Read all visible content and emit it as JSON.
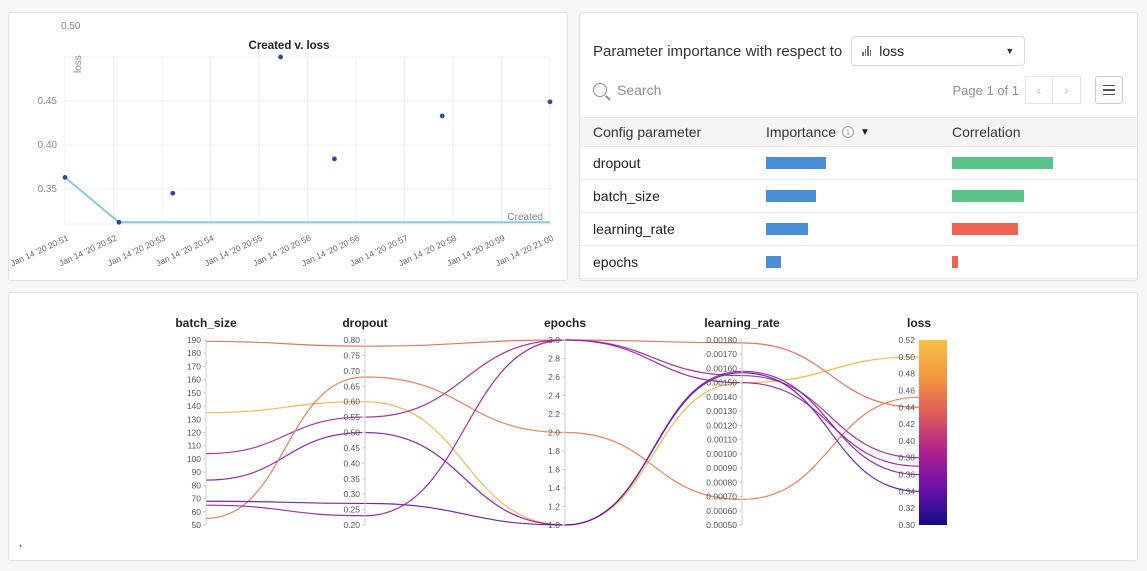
{
  "scatter": {
    "title": "Created v. loss",
    "ylabel": "loss",
    "xlabel": "Created",
    "top_tick": "0.50",
    "yticks": [
      "0.45",
      "0.40",
      "0.35"
    ],
    "xticks": [
      "Jan 14 '20 20:51",
      "Jan 14 '20 20:52",
      "Jan 14 '20 20:53",
      "Jan 14 '20 20:54",
      "Jan 14 '20 20:55",
      "Jan 14 '20 20:56",
      "Jan 14 '20 20:56",
      "Jan 14 '20 20:57",
      "Jan 14 '20 20:58",
      "Jan 14 '20 20:59",
      "Jan 14 '20 21:00"
    ],
    "colors": {
      "point": "#2d4aa8",
      "line": "#8ec6ea",
      "grid": "#eceff2"
    }
  },
  "importance": {
    "header": "Parameter importance with respect to",
    "metric_icon": "bar-chart-icon",
    "metric": "loss",
    "search_placeholder": "Search",
    "page_info": "Page 1 of 1",
    "columns": [
      "Config parameter",
      "Importance",
      "Correlation"
    ],
    "rows": [
      {
        "name": "dropout",
        "importance": 0.6,
        "correlation": 0.84
      },
      {
        "name": "batch_size",
        "importance": 0.5,
        "correlation": 0.6
      },
      {
        "name": "learning_rate",
        "importance": 0.42,
        "correlation": -0.55
      },
      {
        "name": "epochs",
        "importance": 0.15,
        "correlation": -0.05
      }
    ],
    "colors": {
      "importance": "#4a8fd6",
      "positive": "#5cc48a",
      "negative": "#ee6352"
    }
  },
  "parallel": {
    "footnote": ",",
    "colorbar_colors": [
      "#140c88",
      "#6a12a8",
      "#b0228c",
      "#df5a5a",
      "#f3983f",
      "#f5c244"
    ]
  },
  "chart_data": [
    {
      "type": "scatter",
      "title": "Created v. loss",
      "xlabel": "Created",
      "ylabel": "loss",
      "x_range": [
        "Jan 14 '20 20:51",
        "Jan 14 '20 21:00"
      ],
      "ylim": [
        0.31,
        0.5
      ],
      "grid": true,
      "points": [
        {
          "x": "20:51",
          "y": 0.363
        },
        {
          "x": "20:52",
          "y": 0.312
        },
        {
          "x": "20:53",
          "y": 0.345
        },
        {
          "x": "20:55",
          "y": 0.5
        },
        {
          "x": "20:56",
          "y": 0.384
        },
        {
          "x": "20:58",
          "y": 0.433
        },
        {
          "x": "21:00",
          "y": 0.449
        }
      ],
      "best_so_far": [
        {
          "x": "20:51",
          "y": 0.363
        },
        {
          "x": "20:52",
          "y": 0.312
        },
        {
          "x": "21:00",
          "y": 0.312
        }
      ]
    },
    {
      "type": "parallel-coordinates",
      "axes": [
        {
          "name": "batch_size",
          "min": 50,
          "max": 190,
          "ticks": [
            "190",
            "180",
            "170",
            "160",
            "150",
            "140",
            "130",
            "120",
            "110",
            "100",
            "90",
            "80",
            "70",
            "60",
            "50"
          ]
        },
        {
          "name": "dropout",
          "min": 0.2,
          "max": 0.8,
          "ticks": [
            "0.80",
            "0.75",
            "0.70",
            "0.65",
            "0.60",
            "0.55",
            "0.50",
            "0.45",
            "0.40",
            "0.35",
            "0.30",
            "0.25",
            "0.20"
          ]
        },
        {
          "name": "epochs",
          "min": 1.0,
          "max": 3.0,
          "ticks": [
            "3.0",
            "2.8",
            "2.6",
            "2.4",
            "2.2",
            "2.0",
            "1.8",
            "1.6",
            "1.4",
            "1.2",
            "1.0"
          ]
        },
        {
          "name": "learning_rate",
          "min": 0.0005,
          "max": 0.0018,
          "ticks": [
            "0.00180",
            "0.00170",
            "0.00160",
            "0.00150",
            "0.00140",
            "0.00130",
            "0.00120",
            "0.00110",
            "0.00100",
            "0.00090",
            "0.00080",
            "0.00070",
            "0.00060",
            "0.00050"
          ]
        },
        {
          "name": "loss",
          "min": 0.3,
          "max": 0.52,
          "ticks": [
            "0.52",
            "0.50",
            "0.48",
            "0.46",
            "0.44",
            "0.42",
            "0.40",
            "0.38",
            "0.36",
            "0.34",
            "0.32",
            "0.30"
          ]
        }
      ],
      "runs": [
        [
          189,
          0.78,
          3.0,
          0.00178,
          0.44
        ],
        [
          135,
          0.6,
          1.0,
          0.0015,
          0.5
        ],
        [
          104,
          0.55,
          3.0,
          0.00155,
          0.38
        ],
        [
          84,
          0.5,
          1.0,
          0.00158,
          0.36
        ],
        [
          55,
          0.68,
          2.0,
          0.00068,
          0.452
        ],
        [
          68,
          0.27,
          1.0,
          0.00157,
          0.34
        ],
        [
          65,
          0.23,
          3.0,
          0.0015,
          0.37
        ]
      ]
    }
  ]
}
